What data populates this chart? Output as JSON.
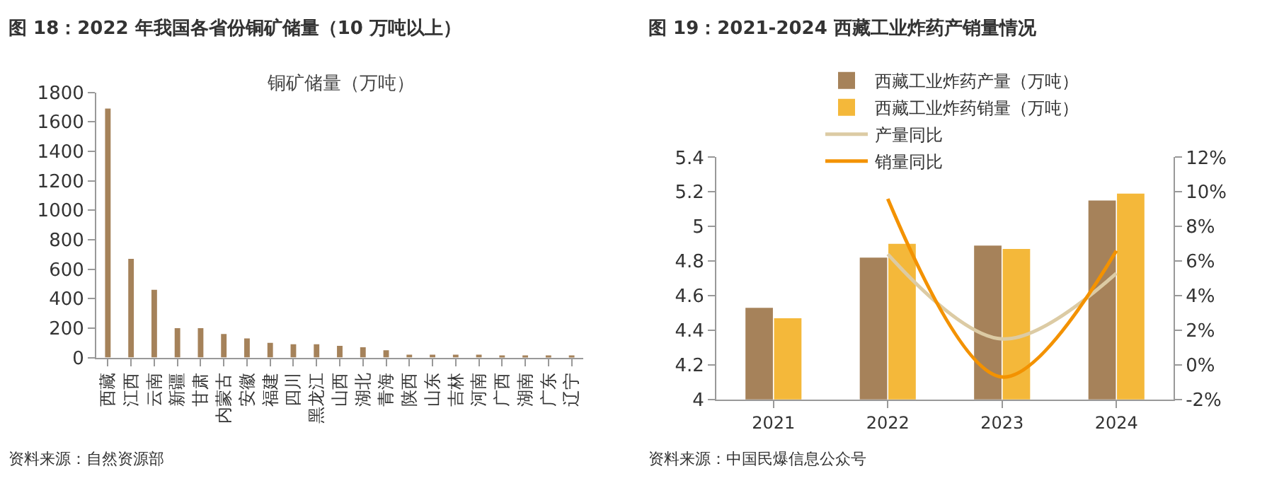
{
  "chart_data": [
    {
      "type": "bar",
      "title": "图 18：2022 年我国各省份铜矿储量（10 万吨以上）",
      "subtitle": "铜矿储量（万吨）",
      "categories": [
        "西藏",
        "江西",
        "云南",
        "新疆",
        "甘肃",
        "内蒙古",
        "安徽",
        "福建",
        "四川",
        "黑龙江",
        "山西",
        "湖北",
        "青海",
        "陕西",
        "山东",
        "吉林",
        "河南",
        "广西",
        "湖南",
        "广东",
        "辽宁"
      ],
      "series": [
        {
          "color": "#a5825a",
          "values": [
            1690,
            670,
            460,
            200,
            200,
            160,
            130,
            100,
            90,
            90,
            80,
            70,
            50,
            20,
            20,
            20,
            20,
            10,
            10,
            10,
            10
          ]
        }
      ],
      "ylim": [
        0,
        1800
      ],
      "yticks": [
        0,
        200,
        400,
        600,
        800,
        1000,
        1200,
        1400,
        1600,
        1800
      ],
      "annotations": [
        "资料来源：自然资源部"
      ]
    },
    {
      "type": "bar",
      "title": "图 19：2021-2024 西藏工业炸药产销量情况",
      "categories": [
        "2021",
        "2022",
        "2023",
        "2024"
      ],
      "series": [
        {
          "name": "西藏工业炸药产量（万吨）",
          "color": "#a6825a",
          "values": [
            4.53,
            4.82,
            4.89,
            5.15
          ]
        },
        {
          "name": "西藏工业炸药销量（万吨）",
          "color": "#f4b83a",
          "values": [
            4.47,
            4.9,
            4.87,
            5.19
          ]
        },
        {
          "name": "产量同比",
          "type": "line",
          "axis": "y2",
          "color": "#dccba4",
          "values": [
            null,
            6.4,
            1.5,
            5.3
          ]
        },
        {
          "name": "销量同比",
          "type": "line",
          "axis": "y2",
          "color": "#f39200",
          "values": [
            null,
            9.6,
            -0.7,
            6.6
          ]
        }
      ],
      "ylim": [
        4,
        5.4
      ],
      "yticks": [
        4,
        4.2,
        4.4,
        4.6,
        4.8,
        5,
        5.2,
        5.4
      ],
      "y2lim": [
        -2,
        12
      ],
      "y2ticks": [
        {
          "value": -2,
          "label": "-2%"
        },
        {
          "value": 0,
          "label": "0%"
        },
        {
          "value": 2,
          "label": "2%"
        },
        {
          "value": 4,
          "label": "4%"
        },
        {
          "value": 6,
          "label": "6%"
        },
        {
          "value": 8,
          "label": "8%"
        },
        {
          "value": 10,
          "label": "10%"
        },
        {
          "value": 12,
          "label": "12%"
        }
      ],
      "legend": "top",
      "marker": "none",
      "line_style": "solid",
      "annotations": [
        "资料来源：中国民爆信息公众号"
      ]
    }
  ]
}
